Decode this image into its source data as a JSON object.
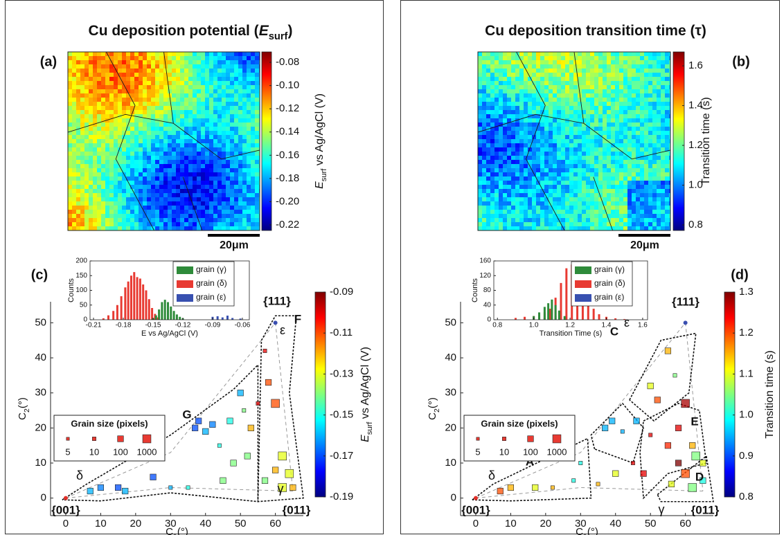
{
  "chart_data": [
    {
      "type": "heatmap",
      "title": {
        "main": "Cu deposition potential (",
        "sym": "E",
        "sub": "surf",
        "rest": ")"
      },
      "panel_label": "(a)",
      "clim": [
        -0.2248,
        -0.071
      ],
      "cticks": [
        -0.08,
        {
          "value": -0.1,
          "label": "-0.10"
        },
        -0.12,
        -0.14,
        -0.16,
        -0.18,
        {
          "value": -0.2,
          "label": "-0.20"
        },
        -0.22
      ],
      "colorbar_label": {
        "sym": "E",
        "sub": "surf",
        "rest": " vs Ag/AgCl (V)"
      },
      "scale_bar": "20μm"
    },
    {
      "type": "heatmap",
      "title": {
        "main": "Cu deposition transition time (τ)"
      },
      "panel_label": "(b)",
      "clim": [
        0.772,
        1.67
      ],
      "cticks": [
        0.8,
        {
          "value": 1,
          "label": "1.0"
        },
        1.2,
        1.4,
        1.6
      ],
      "colorbar_label": {
        "main": "Transition time (s)"
      },
      "scale_bar": "20μm"
    },
    {
      "type": "scatter",
      "panel_label": "(c)",
      "xlabel": {
        "main": "C",
        "sub": "1",
        "rest": "(°)"
      },
      "ylabel": {
        "main": "C",
        "sub": "2",
        "rest": "(°)"
      },
      "xlim": [
        -4.35,
        68
      ],
      "ylim": [
        -5,
        56
      ],
      "xticks": [
        0,
        10,
        20,
        30,
        40,
        50,
        60
      ],
      "yticks": [
        0,
        10,
        20,
        30,
        40,
        50
      ],
      "clim": [
        -0.19,
        -0.09
      ],
      "cticks": [
        -0.09,
        -0.11,
        -0.13,
        -0.15,
        -0.17,
        -0.19
      ],
      "colorbar_label": {
        "sym": "E",
        "sub": "surf",
        "rest": " vs Ag/AgCl (V)"
      },
      "x": [
        7,
        10,
        15,
        17,
        25,
        25,
        30,
        37,
        38,
        40,
        42,
        44,
        47,
        50,
        51,
        53,
        55,
        58,
        60,
        62,
        64,
        60,
        57,
        62,
        65,
        45,
        52,
        57,
        35,
        48
      ],
      "y": [
        2,
        3,
        3,
        2,
        12,
        6,
        3,
        20,
        22,
        19,
        21,
        15,
        22,
        30,
        25,
        20,
        27,
        33,
        27,
        12,
        7,
        8,
        5,
        3,
        3,
        5,
        12,
        42,
        3,
        10
      ],
      "values": [
        -0.16,
        -0.165,
        -0.17,
        -0.16,
        -0.16,
        -0.17,
        -0.16,
        -0.17,
        -0.17,
        -0.16,
        -0.165,
        -0.15,
        -0.15,
        -0.16,
        -0.14,
        -0.12,
        -0.1,
        -0.11,
        -0.11,
        -0.13,
        -0.13,
        -0.12,
        -0.14,
        -0.13,
        -0.12,
        -0.14,
        -0.14,
        -0.1,
        -0.15,
        -0.14
      ],
      "sizes": [
        100,
        100,
        100,
        100,
        10,
        100,
        10,
        100,
        100,
        100,
        100,
        10,
        100,
        100,
        10,
        100,
        10,
        100,
        1000,
        1000,
        1000,
        100,
        100,
        1000,
        100,
        100,
        100,
        10,
        10,
        100
      ],
      "size_legend": {
        "title": "Grain size (pixels)",
        "sizes": [
          5,
          10,
          100,
          1000
        ]
      },
      "annotations": [
        {
          "text": "{001}",
          "color": "#e0302a"
        },
        {
          "text": "{011}",
          "color": "#39a84a"
        },
        {
          "text": "{111}",
          "color": "#3a4fb0"
        },
        {
          "text": "F",
          "color": "#111111"
        },
        {
          "text": "ε",
          "color": "#111111"
        },
        {
          "text": "G",
          "color": "#111111"
        },
        {
          "text": "δ",
          "color": "#111111"
        },
        {
          "text": "γ",
          "color": "#111111"
        }
      ]
    },
    {
      "type": "scatter",
      "panel_label": "(d)",
      "xlabel": {
        "main": "C",
        "sub": "1",
        "rest": "(°)"
      },
      "ylabel": {
        "main": "C",
        "sub": "2",
        "rest": "(°)"
      },
      "xlim": [
        -4.35,
        68
      ],
      "ylim": [
        -5,
        56
      ],
      "xticks": [
        0,
        10,
        20,
        30,
        40,
        50,
        60
      ],
      "yticks": [
        0,
        10,
        20,
        30,
        40,
        50
      ],
      "clim": [
        0.8,
        1.3
      ],
      "cticks": [
        0.8,
        0.9,
        {
          "value": 1,
          "label": "1.0"
        },
        1.1,
        1.2,
        1.3
      ],
      "colorbar_label": {
        "main": "Transition time (s)"
      },
      "x": [
        7,
        10,
        17,
        22,
        28,
        30,
        37,
        39,
        42,
        40,
        45,
        46,
        50,
        52,
        55,
        57,
        60,
        58,
        55,
        62,
        63,
        60,
        56,
        62,
        65,
        50,
        48,
        35,
        65,
        58
      ],
      "y": [
        2,
        3,
        3,
        3,
        5,
        10,
        20,
        22,
        19,
        7,
        10,
        22,
        32,
        28,
        42,
        35,
        27,
        20,
        15,
        15,
        12,
        7,
        4,
        3,
        5,
        18,
        7,
        4,
        10,
        10
      ],
      "values": [
        1.2,
        1.15,
        1.1,
        1.15,
        1.0,
        1.0,
        0.95,
        0.95,
        0.95,
        1.1,
        1.25,
        0.95,
        1.1,
        1.2,
        1.15,
        1.05,
        1.28,
        1.25,
        1.22,
        1.15,
        1.05,
        1.2,
        1.1,
        1.05,
        1.0,
        1.25,
        1.25,
        1.15,
        1.1,
        1.3
      ],
      "sizes": [
        100,
        100,
        100,
        10,
        10,
        10,
        100,
        100,
        10,
        100,
        10,
        100,
        100,
        100,
        100,
        10,
        1000,
        100,
        100,
        100,
        1000,
        1000,
        100,
        1000,
        100,
        10,
        100,
        10,
        100,
        100
      ],
      "size_legend": {
        "title": "Grain size (pixels)",
        "sizes": [
          5,
          10,
          100,
          1000
        ]
      },
      "annotations": [
        {
          "text": "{001}",
          "color": "#e0302a"
        },
        {
          "text": "{011}",
          "color": "#39a84a"
        },
        {
          "text": "{111}",
          "color": "#3a4fb0"
        },
        {
          "text": "C",
          "color": "#111111"
        },
        {
          "text": "ε",
          "color": "#111111"
        },
        {
          "text": "B",
          "color": "#111111"
        },
        {
          "text": "E",
          "color": "#111111"
        },
        {
          "text": "D",
          "color": "#111111"
        },
        {
          "text": "A",
          "color": "#111111"
        },
        {
          "text": "δ",
          "color": "#111111"
        },
        {
          "text": "γ",
          "color": "#111111"
        }
      ]
    },
    {
      "type": "bar",
      "xlabel": "E vs Ag/AgCl (V)",
      "ylabel": "Counts",
      "xlim": [
        -0.2135,
        -0.053
      ],
      "ylim": [
        0,
        200
      ],
      "xticks": [
        -0.21,
        -0.18,
        -0.15,
        -0.12,
        -0.09,
        -0.06
      ],
      "yticks": [
        0,
        50,
        100,
        150,
        200
      ],
      "legend": "upper right",
      "series": [
        {
          "name": "grain (γ)",
          "color": "#2e8b3a",
          "x": [
            -0.15,
            -0.147,
            -0.144,
            -0.141,
            -0.138,
            -0.135,
            -0.132,
            -0.129,
            -0.126,
            -0.123,
            -0.12
          ],
          "values": [
            5,
            15,
            35,
            60,
            68,
            60,
            45,
            30,
            18,
            10,
            5
          ]
        },
        {
          "name": "grain (δ)",
          "color": "#e83a32",
          "x": [
            -0.2,
            -0.195,
            -0.19,
            -0.186,
            -0.182,
            -0.178,
            -0.175,
            -0.172,
            -0.169,
            -0.166,
            -0.163,
            -0.16,
            -0.157,
            -0.154,
            -0.151,
            -0.148,
            -0.145
          ],
          "values": [
            5,
            15,
            30,
            50,
            80,
            110,
            130,
            150,
            162,
            145,
            140,
            120,
            100,
            70,
            40,
            20,
            8
          ]
        },
        {
          "name": "grain (ε)",
          "color": "#3850b0",
          "x": [
            -0.09,
            -0.085,
            -0.08,
            -0.075,
            -0.07,
            -0.062
          ],
          "values": [
            10,
            12,
            8,
            14,
            6,
            4
          ]
        }
      ]
    },
    {
      "type": "bar",
      "xlabel": "Transition Time (s)",
      "ylabel": "Counts",
      "xlim": [
        0.78,
        1.627
      ],
      "ylim": [
        0,
        160
      ],
      "xticks": [
        0.8,
        {
          "value": 1,
          "label": "1.0"
        },
        1.2,
        1.4,
        1.6
      ],
      "yticks": [
        0,
        40,
        80,
        120,
        160
      ],
      "legend": "upper right",
      "series": [
        {
          "name": "grain (γ)",
          "color": "#2e8b3a",
          "x": [
            1.0,
            1.03,
            1.06,
            1.08,
            1.1,
            1.12,
            1.14,
            1.17
          ],
          "values": [
            10,
            20,
            35,
            45,
            55,
            40,
            25,
            10
          ]
        },
        {
          "name": "grain (δ)",
          "color": "#e83a32",
          "x": [
            0.9,
            0.95,
            1.0,
            1.03,
            1.06,
            1.09,
            1.12,
            1.15,
            1.18,
            1.21,
            1.24,
            1.27,
            1.3,
            1.33,
            1.36,
            1.4,
            1.45,
            1.5
          ],
          "values": [
            5,
            8,
            10,
            12,
            20,
            30,
            60,
            100,
            140,
            150,
            120,
            90,
            50,
            30,
            15,
            8,
            4,
            2
          ]
        },
        {
          "name": "grain (ε)",
          "color": "#3850b0",
          "x": [
            1.06,
            1.09,
            1.12,
            1.15
          ],
          "values": [
            5,
            8,
            10,
            6
          ]
        }
      ]
    }
  ]
}
